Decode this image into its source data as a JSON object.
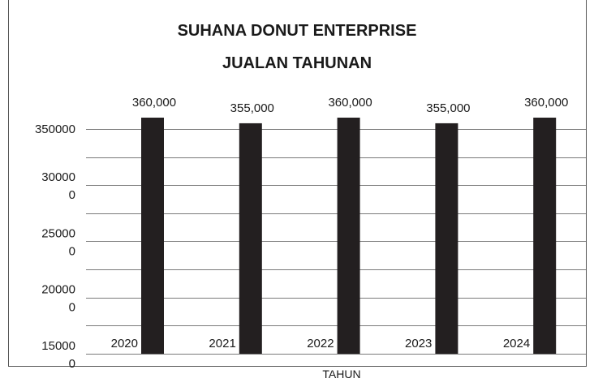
{
  "chart_data": {
    "type": "bar",
    "title": "SUHANA DONUT ENTERPRISE",
    "subtitle": "JUALAN TAHUNAN",
    "xlabel": "TAHUN",
    "ylabel": "",
    "categories": [
      "2020",
      "2021",
      "2022",
      "2023",
      "2024"
    ],
    "series": [
      {
        "values": [
          360000,
          355000,
          360000,
          355000,
          360000
        ]
      }
    ],
    "data_labels": [
      "360,000",
      "355,000",
      "360,000",
      "355,000",
      "360,000"
    ],
    "ylim": [
      150000,
      360000
    ],
    "y_ticks": [
      {
        "value": 350000,
        "lines": [
          "350000"
        ]
      },
      {
        "value": 300000,
        "lines": [
          "30000",
          "0"
        ]
      },
      {
        "value": 250000,
        "lines": [
          "25000",
          "0"
        ]
      },
      {
        "value": 200000,
        "lines": [
          "20000",
          "0"
        ]
      },
      {
        "value": 150000,
        "lines": [
          "15000",
          "0"
        ]
      }
    ],
    "grid": true,
    "bar_color": "#231f20",
    "grid_color": "#7a7a7a"
  }
}
